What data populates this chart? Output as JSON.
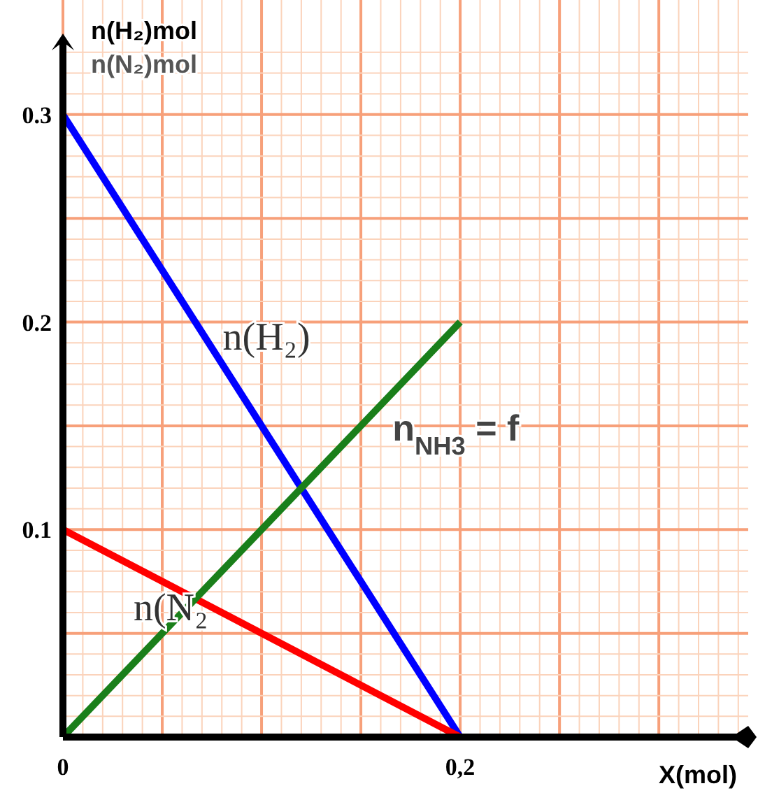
{
  "chart_data": {
    "type": "line",
    "xlabel": "X(mol)",
    "ylabel": "n(H₂)mol\nn(N₂)mol",
    "x": [
      0,
      0.2
    ],
    "series": [
      {
        "name": "n(H₂)",
        "color": "#0000ff",
        "values": [
          0.3,
          0
        ]
      },
      {
        "name": "n(N₂",
        "color": "#ff0000",
        "values": [
          0.1,
          0
        ]
      },
      {
        "name": "n$_{NH3}$ = f",
        "color": "#1a7f1a",
        "values": [
          0,
          0.2
        ]
      }
    ],
    "xlim": [
      0,
      0.345
    ],
    "ylim": [
      0,
      0.335
    ],
    "xticks": [
      0,
      {
        "value": 0.01,
        "label": null
      },
      {
        "value": 0.02,
        "label": null
      },
      {
        "value": 0.03,
        "label": null
      },
      {
        "value": 0.04,
        "label": null
      },
      {
        "value": 0.05,
        "label": null
      },
      {
        "value": 0.06,
        "label": null
      },
      {
        "value": 0.07,
        "label": null
      },
      {
        "value": 0.08,
        "label": null
      },
      {
        "value": 0.09,
        "label": null
      },
      {
        "value": 0.1,
        "label": null
      },
      {
        "value": 0.11,
        "label": null
      },
      {
        "value": 0.12,
        "label": null
      },
      {
        "value": 0.13,
        "label": null
      },
      {
        "value": 0.14,
        "label": null
      },
      {
        "value": 0.15,
        "label": null
      },
      {
        "value": 0.16,
        "label": null
      },
      {
        "value": 0.17,
        "label": null
      },
      {
        "value": 0.18,
        "label": null
      },
      {
        "value": 0.19,
        "label": null
      },
      {
        "value": 0.2,
        "label": "0,2"
      },
      {
        "value": 0.21,
        "label": null
      },
      {
        "value": 0.22,
        "label": null
      },
      {
        "value": 0.23,
        "label": null
      },
      {
        "value": 0.24,
        "label": null
      },
      {
        "value": 0.25,
        "label": null
      },
      {
        "value": 0.26,
        "label": null
      },
      {
        "value": 0.27,
        "label": null
      },
      {
        "value": 0.28,
        "label": null
      },
      {
        "value": 0.29,
        "label": null
      },
      {
        "value": 0.3,
        "label": null
      },
      {
        "value": 0.31,
        "label": null
      },
      {
        "value": 0.32,
        "label": null
      },
      {
        "value": 0.33,
        "label": null
      },
      {
        "value": 0.34,
        "label": null
      }
    ],
    "yticks": [
      {
        "value": 0,
        "label": null
      },
      {
        "value": 0.01,
        "label": null
      },
      {
        "value": 0.02,
        "label": null
      },
      {
        "value": 0.03,
        "label": null
      },
      {
        "value": 0.04,
        "label": null
      },
      {
        "value": 0.05,
        "label": null
      },
      {
        "value": 0.06,
        "label": null
      },
      {
        "value": 0.07,
        "label": null
      },
      {
        "value": 0.08,
        "label": null
      },
      {
        "value": 0.09,
        "label": null
      },
      0.1,
      {
        "value": 0.11,
        "label": null
      },
      {
        "value": 0.12,
        "label": null
      },
      {
        "value": 0.13,
        "label": null
      },
      {
        "value": 0.14,
        "label": null
      },
      {
        "value": 0.15,
        "label": null
      },
      {
        "value": 0.16,
        "label": null
      },
      {
        "value": 0.17,
        "label": null
      },
      {
        "value": 0.18,
        "label": null
      },
      {
        "value": 0.19,
        "label": null
      },
      0.2,
      {
        "value": 0.21,
        "label": null
      },
      {
        "value": 0.22,
        "label": null
      },
      {
        "value": 0.23,
        "label": null
      },
      {
        "value": 0.24,
        "label": null
      },
      {
        "value": 0.25,
        "label": null
      },
      {
        "value": 0.26,
        "label": null
      },
      {
        "value": 0.27,
        "label": null
      },
      {
        "value": 0.28,
        "label": null
      },
      {
        "value": 0.29,
        "label": null
      },
      0.3,
      {
        "value": 0.31,
        "label": null
      },
      {
        "value": 0.32,
        "label": null
      },
      {
        "value": 0.33,
        "label": null
      }
    ],
    "grid": true,
    "marker": "none",
    "line_style": "solid"
  }
}
